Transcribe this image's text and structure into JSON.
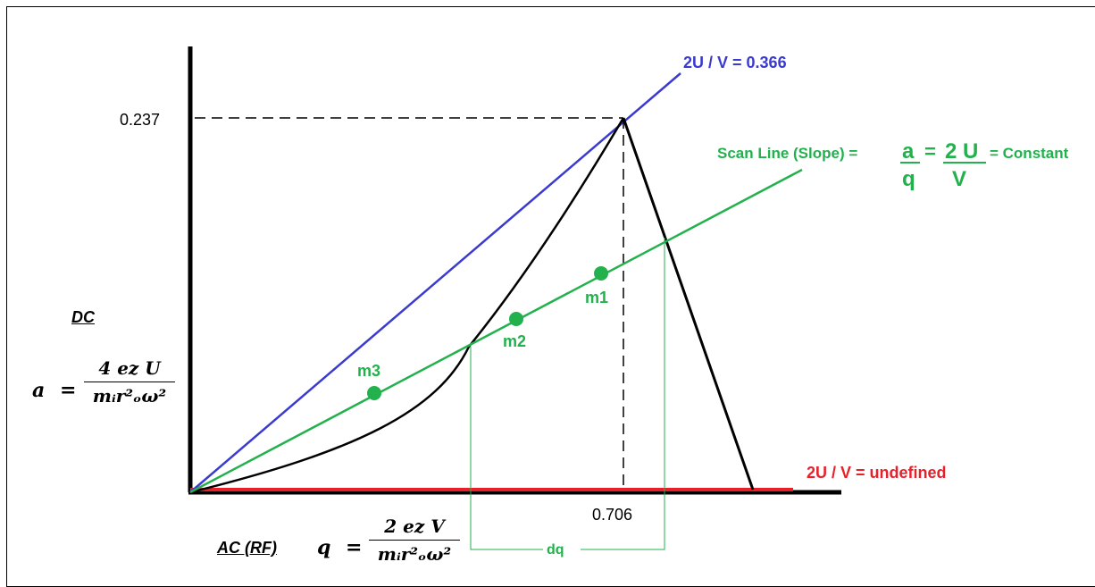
{
  "diagram": {
    "y_tick_value": "0.237",
    "x_tick_value": "0.706",
    "blue_line_label": "2U / V = 0.366",
    "red_line_label": "2U / V = undefined",
    "scan_line": {
      "prefix": "Scan Line (Slope) =",
      "a_num": "a",
      "a_den": "q",
      "eq": "=",
      "u_num": "2 U",
      "v_den": "V",
      "suffix": "= Constant"
    },
    "points": [
      "m1",
      "m2",
      "m3"
    ],
    "dq_label": "dq",
    "dc_label": "DC",
    "ac_label": "AC (RF)",
    "a_formula": {
      "var": "a",
      "eq": "=",
      "numerator": "4 ez U",
      "denominator": "mᵢr²ₒω²"
    },
    "q_formula": {
      "var": "q",
      "eq": "=",
      "numerator": "2 ez V",
      "denominator": "mᵢr²ₒω²"
    },
    "colors": {
      "axis": "#000000",
      "blue_line": "#3a3ad0",
      "scan_line": "#22b14c",
      "red_line": "#e8202a",
      "curve": "#000000"
    }
  }
}
